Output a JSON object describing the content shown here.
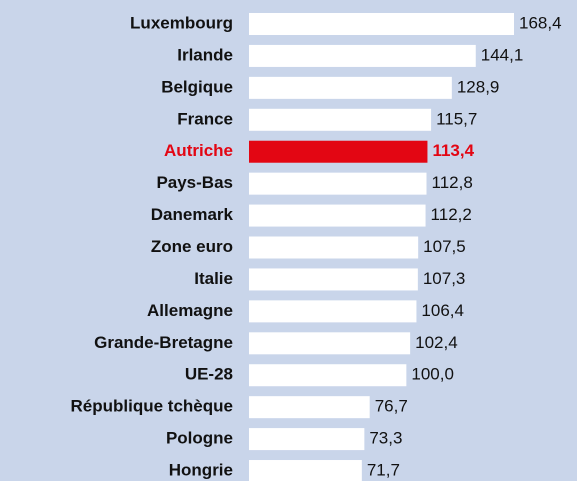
{
  "chart_data": {
    "type": "hbar",
    "categories": [
      "Luxembourg",
      "Irlande",
      "Belgique",
      "France",
      "Autriche",
      "Pays-Bas",
      "Danemark",
      "Zone euro",
      "Italie",
      "Allemagne",
      "Grande-Bretagne",
      "UE-28",
      "République tchèque",
      "Pologne",
      "Hongrie"
    ],
    "values": [
      168.4,
      144.1,
      128.9,
      115.7,
      113.4,
      112.8,
      112.2,
      107.5,
      107.3,
      106.4,
      102.4,
      100.0,
      76.7,
      73.3,
      71.7
    ],
    "value_labels": [
      "168,4",
      "144,1",
      "128,9",
      "115,7",
      "113,4",
      "112,8",
      "112,2",
      "107,5",
      "107,3",
      "106,4",
      "102,4",
      "100,0",
      "76,7",
      "73,3",
      "71,7"
    ],
    "colors": [
      "#ffffff",
      "#ffffff",
      "#ffffff",
      "#ffffff",
      "#e30613",
      "#ffffff",
      "#ffffff",
      "#ffffff",
      "#ffffff",
      "#ffffff",
      "#ffffff",
      "#ffffff",
      "#ffffff",
      "#ffffff",
      "#ffffff"
    ],
    "background": "#c9d5ea"
  }
}
